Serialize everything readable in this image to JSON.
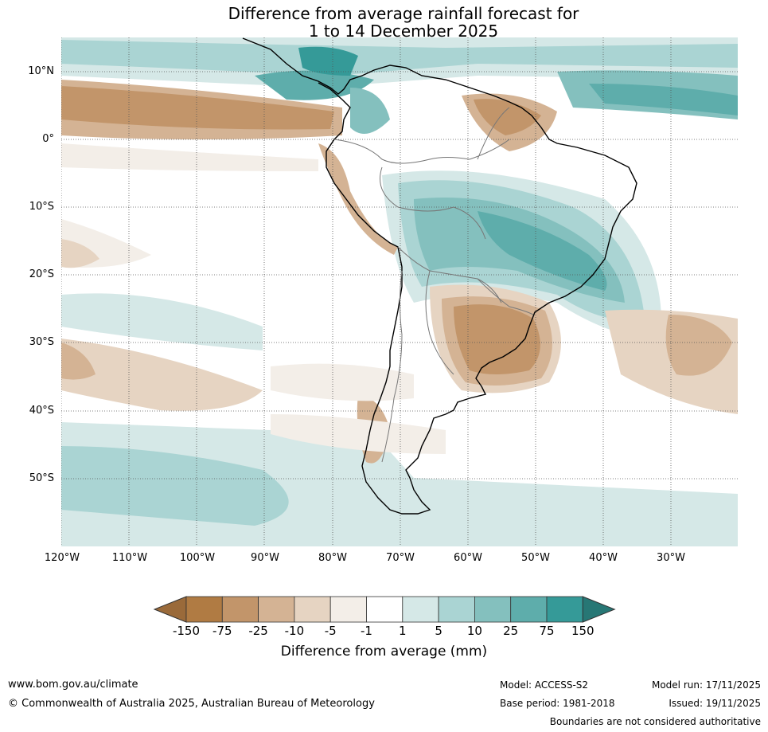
{
  "title": {
    "line1": "Difference from average rainfall forecast for",
    "line2": "1 to 14 December 2025"
  },
  "map": {
    "latitude_labels": [
      "10°N",
      "0°",
      "10°S",
      "20°S",
      "30°S",
      "40°S",
      "50°S"
    ],
    "longitude_labels": [
      "120°W",
      "110°W",
      "100°W",
      "90°W",
      "80°W",
      "70°W",
      "60°W",
      "50°W",
      "40°W",
      "30°W"
    ]
  },
  "colorbar": {
    "ticks": [
      "-150",
      "-75",
      "-25",
      "-10",
      "-5",
      "-1",
      "1",
      "5",
      "10",
      "25",
      "75",
      "150"
    ],
    "colors": [
      "#9a6a3a",
      "#b07b43",
      "#c2956a",
      "#d4b394",
      "#e6d4c2",
      "#f3eee8",
      "#ffffff",
      "#d5e8e7",
      "#aad4d3",
      "#84c0be",
      "#5eadab",
      "#359a98",
      "#277775"
    ],
    "label": "Difference from average (mm)"
  },
  "footer": {
    "website": "www.bom.gov.au/climate",
    "copyright": "© Commonwealth of Australia 2025, Australian Bureau of Meteorology",
    "model": "Model: ACCESS-S2",
    "model_run": "Model run: 17/11/2025",
    "base_period": "Base period: 1981-2018",
    "issued": "Issued: 19/11/2025",
    "boundaries_note": "Boundaries are not considered authoritative"
  }
}
